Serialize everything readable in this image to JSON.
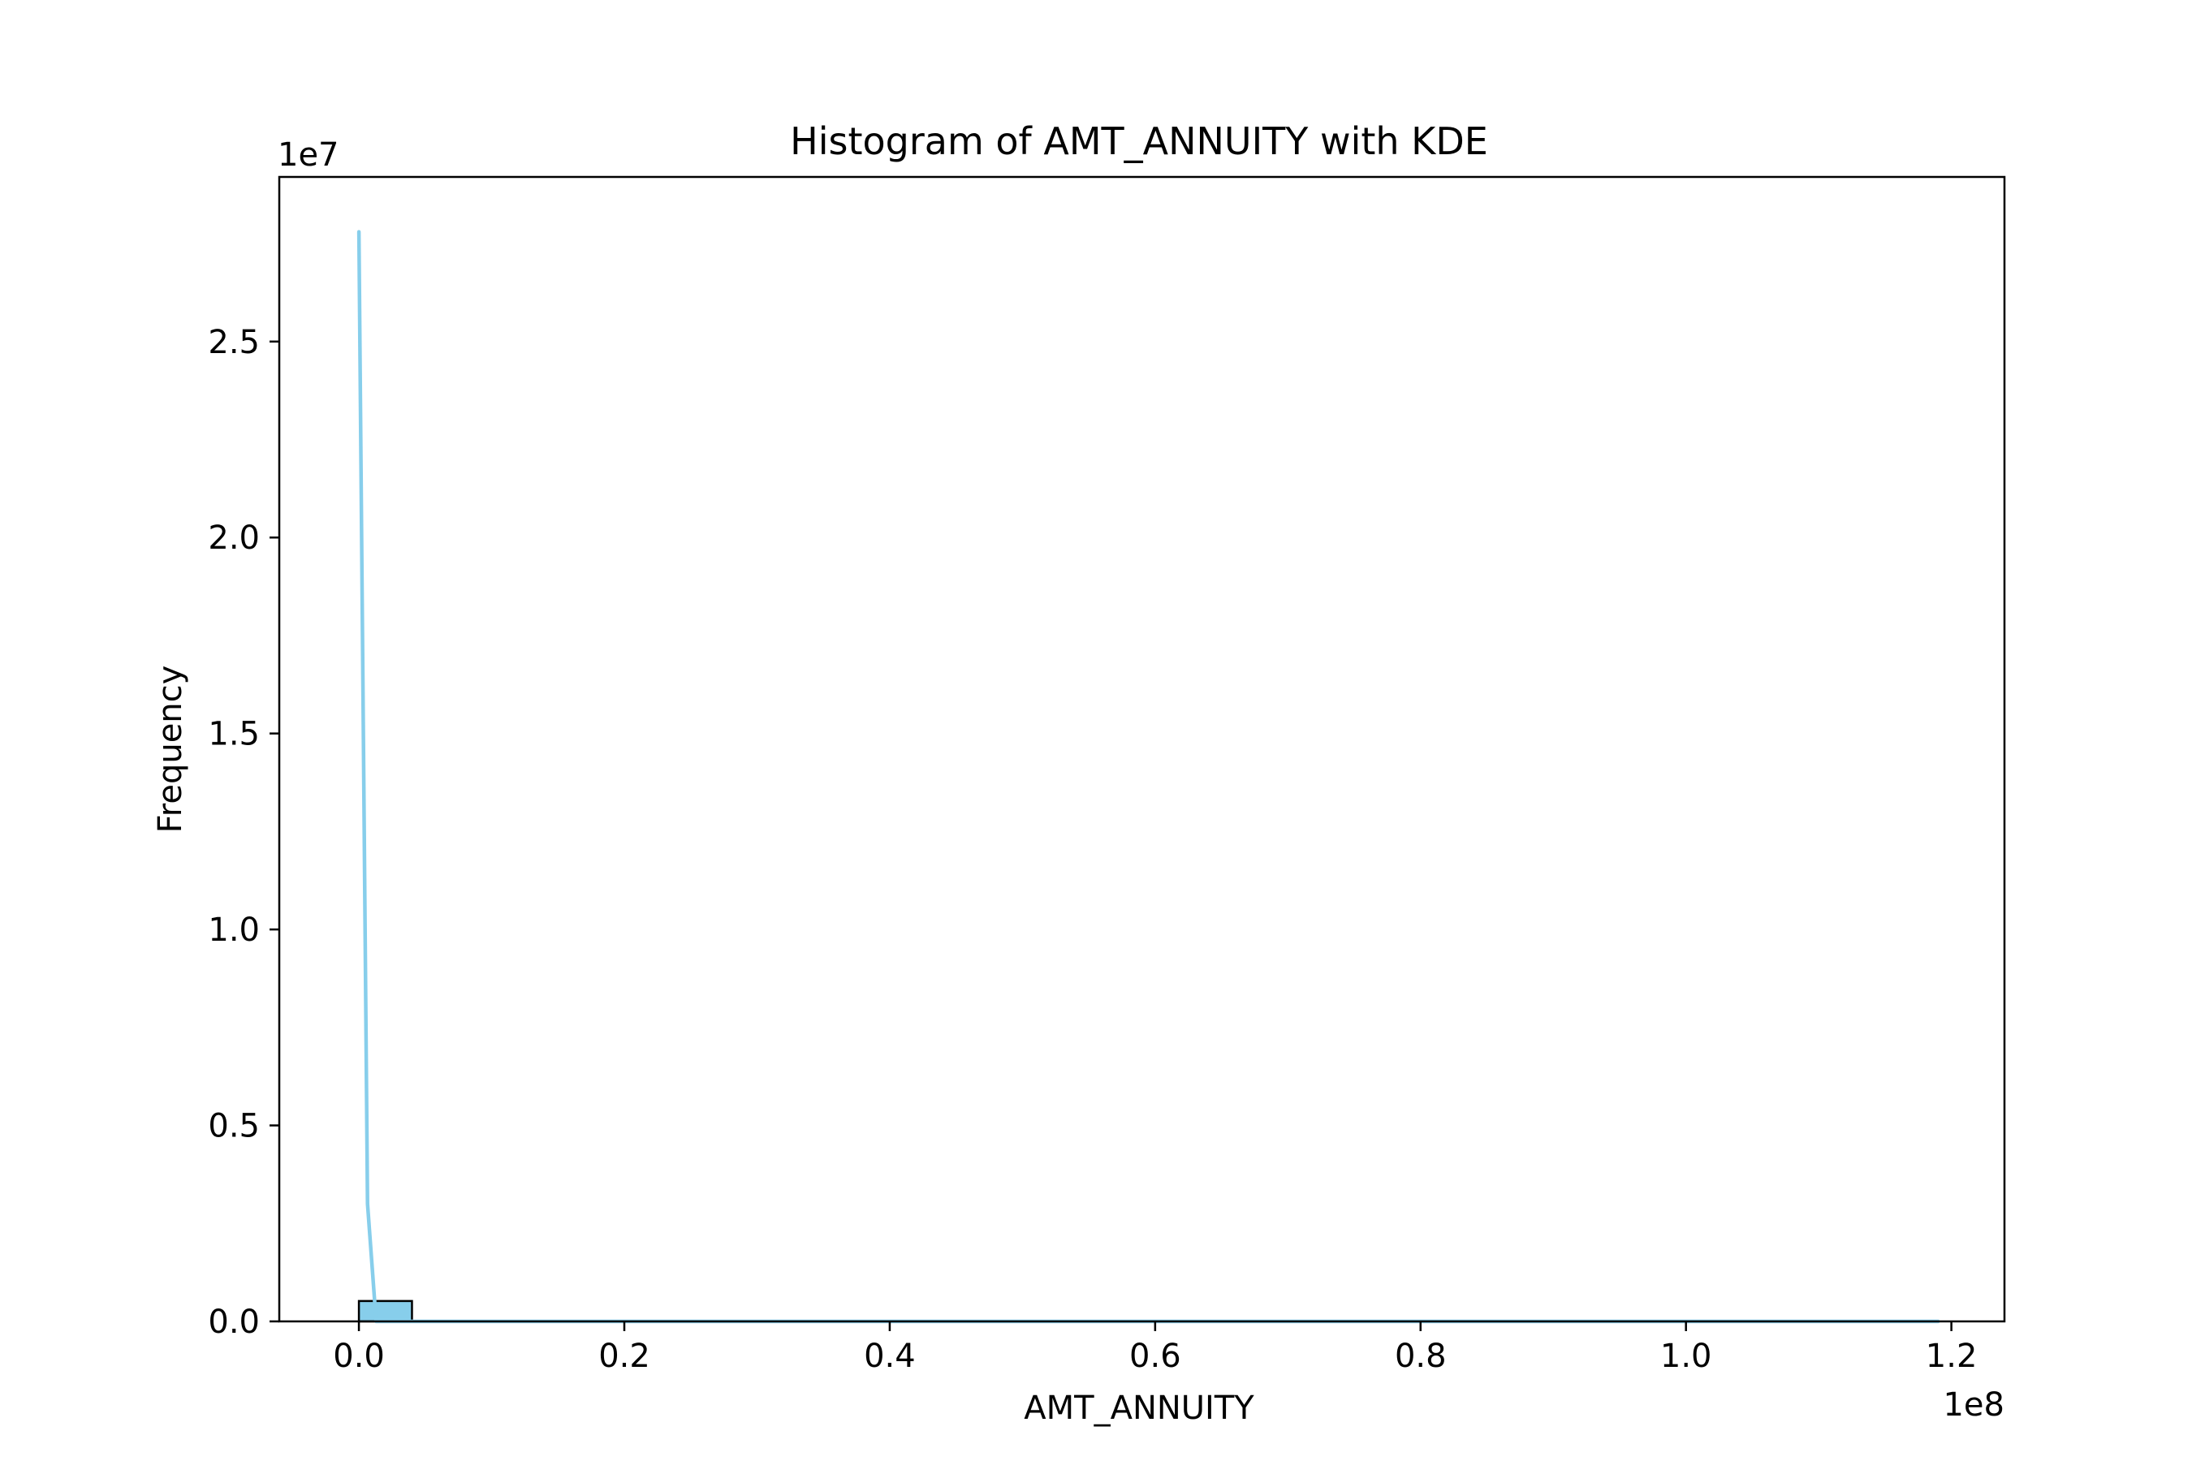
{
  "chart_data": {
    "type": "bar",
    "title": "Histogram of AMT_ANNUITY with KDE",
    "xlabel": "AMT_ANNUITY",
    "ylabel": "Frequency",
    "x_offset_label": "1e8",
    "y_offset_label": "1e7",
    "xlim": [
      -6000000,
      124000000
    ],
    "ylim": [
      0,
      29200000
    ],
    "x_ticks": [
      0.0,
      0.2,
      0.4,
      0.6,
      0.8,
      1.0,
      1.2
    ],
    "x_tick_labels": [
      "0.0",
      "0.2",
      "0.4",
      "0.6",
      "0.8",
      "1.0",
      "1.2"
    ],
    "y_ticks": [
      0.0,
      0.5,
      1.0,
      1.5,
      2.0,
      2.5
    ],
    "y_tick_labels": [
      "0.0",
      "0.5",
      "1.0",
      "1.5",
      "2.0",
      "2.5"
    ],
    "grid": false,
    "bins": [
      {
        "start": 0,
        "end": 4000000,
        "count": 520000
      },
      {
        "start": 4000000,
        "end": 8000000,
        "count": 0
      },
      {
        "start": 8000000,
        "end": 12000000,
        "count": 0
      },
      {
        "start": 12000000,
        "end": 118000000,
        "count": 0
      }
    ],
    "kde": {
      "x": [
        0,
        650000,
        1300000,
        4000000,
        20000000,
        60000000,
        119000000
      ],
      "y": [
        27800000,
        3000000,
        0,
        0,
        0,
        0,
        0
      ]
    },
    "colors": {
      "bar_fill": "#87CEEB",
      "bar_edge": "#000000",
      "kde_line": "#87CEEB"
    }
  }
}
